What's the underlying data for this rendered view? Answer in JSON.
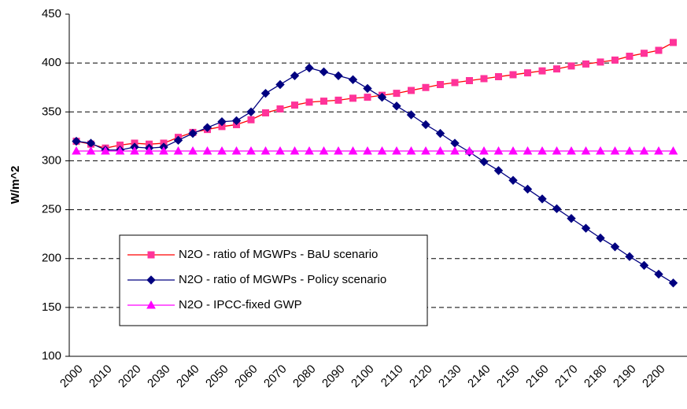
{
  "chart_data": {
    "type": "line",
    "ylabel": "W/m^2",
    "categories": [
      "2000",
      null,
      "2010",
      null,
      "2020",
      null,
      "2030",
      null,
      "2040",
      null,
      "2050",
      null,
      "2060",
      null,
      "2070",
      null,
      "2080",
      null,
      "2090",
      null,
      "2100",
      null,
      "2110",
      null,
      "2120",
      null,
      "2130",
      null,
      "2140",
      null,
      "2150",
      null,
      "2160",
      null,
      "2170",
      null,
      "2180",
      null,
      "2190",
      null,
      "2200",
      null
    ],
    "ylim": [
      100,
      450
    ],
    "yticks": [
      100,
      150,
      200,
      250,
      300,
      350,
      400,
      450
    ],
    "grid": true,
    "legend": "lower center",
    "series": [
      {
        "name": "N2O - ratio of MGWPs - BaU scenario",
        "color": "#ff0000",
        "marker_color": "#ff3399",
        "marker": "square",
        "values": [
          320,
          317,
          313,
          316,
          318,
          317,
          318,
          324,
          329,
          332,
          335,
          337,
          342,
          349,
          353,
          357,
          360,
          361,
          362,
          364,
          365,
          367,
          369,
          372,
          375,
          378,
          380,
          382,
          384,
          386,
          388,
          390,
          392,
          394,
          397,
          399,
          401,
          403,
          407,
          410,
          413,
          421
        ]
      },
      {
        "name": "N2O - ratio of MGWPs - Policy scenario",
        "color": "#000080",
        "marker_color": "#000080",
        "marker": "diamond",
        "values": [
          320,
          318,
          311,
          311,
          314,
          313,
          314,
          321,
          328,
          334,
          340,
          341,
          350,
          369,
          378,
          387,
          395,
          391,
          387,
          383,
          374,
          365,
          356,
          347,
          337,
          328,
          318,
          309,
          299,
          290,
          280,
          271,
          261,
          251,
          241,
          231,
          221,
          212,
          202,
          193,
          184,
          175
        ]
      },
      {
        "name": "N2O - IPCC-fixed GWP",
        "color": "#ff00ff",
        "marker_color": "#ff00ff",
        "marker": "triangle",
        "values": [
          310,
          310,
          310,
          310,
          310,
          310,
          310,
          310,
          310,
          310,
          310,
          310,
          310,
          310,
          310,
          310,
          310,
          310,
          310,
          310,
          310,
          310,
          310,
          310,
          310,
          310,
          310,
          310,
          310,
          310,
          310,
          310,
          310,
          310,
          310,
          310,
          310,
          310,
          310,
          310,
          310,
          310
        ]
      }
    ]
  }
}
